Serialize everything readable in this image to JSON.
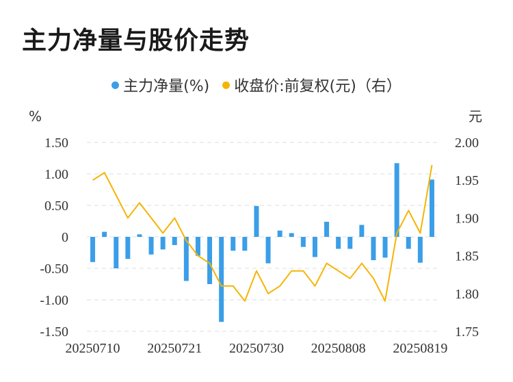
{
  "title": "主力净量与股价走势",
  "legend": {
    "series1": "主力净量(%)",
    "series2": "收盘价:前复权(元)（右）"
  },
  "colors": {
    "bar": "#3a9ee8",
    "line": "#f5b400",
    "grid": "#dddddd"
  },
  "chart_data": {
    "type": "bar+line",
    "title": "主力净量与股价走势",
    "left_axis": {
      "unit": "%",
      "range": [
        -1.5,
        1.5
      ],
      "ticks": [
        "1.50",
        "1.00",
        "0.50",
        "0",
        "-0.50",
        "-1.00",
        "-1.50"
      ],
      "tick_values": [
        1.5,
        1.0,
        0.5,
        0,
        -0.5,
        -1.0,
        -1.5
      ]
    },
    "right_axis": {
      "unit": "元",
      "range": [
        1.75,
        2.0
      ],
      "ticks": [
        "2.00",
        "1.95",
        "1.90",
        "1.85",
        "1.80",
        "1.75"
      ],
      "tick_values": [
        2.0,
        1.95,
        1.9,
        1.85,
        1.8,
        1.75
      ]
    },
    "x_tick_labels": [
      {
        "label": "20250710",
        "index": 0
      },
      {
        "label": "20250721",
        "index": 7
      },
      {
        "label": "20250730",
        "index": 14
      },
      {
        "label": "20250808",
        "index": 21
      },
      {
        "label": "20250819",
        "index": 28
      }
    ],
    "series": [
      {
        "name": "主力净量(%)",
        "type": "bar",
        "axis": "left",
        "values": [
          -0.4,
          0.08,
          -0.5,
          -0.35,
          0.04,
          -0.28,
          -0.2,
          -0.13,
          -0.7,
          -0.3,
          -0.75,
          -1.35,
          -0.22,
          -0.22,
          0.49,
          -0.42,
          0.1,
          0.06,
          -0.16,
          -0.32,
          0.24,
          -0.19,
          -0.19,
          0.19,
          -0.37,
          -0.33,
          1.17,
          -0.19,
          -0.41,
          0.91
        ]
      },
      {
        "name": "收盘价:前复权(元)（右）",
        "type": "line",
        "axis": "right",
        "values": [
          1.95,
          1.96,
          1.93,
          1.9,
          1.92,
          1.9,
          1.88,
          1.9,
          1.87,
          1.85,
          1.84,
          1.81,
          1.81,
          1.79,
          1.83,
          1.8,
          1.81,
          1.83,
          1.83,
          1.81,
          1.84,
          1.83,
          1.82,
          1.84,
          1.82,
          1.79,
          1.88,
          1.91,
          1.88,
          1.97
        ]
      }
    ]
  }
}
